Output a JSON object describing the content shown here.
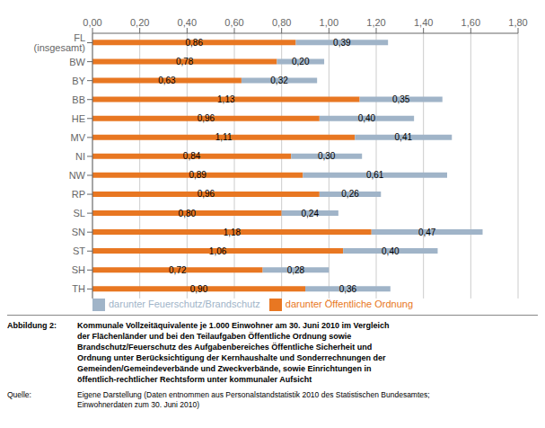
{
  "chart_data": {
    "type": "bar",
    "orientation": "horizontal",
    "stacked": true,
    "data_labels": true,
    "grid": true,
    "legend": "bottom",
    "categories": [
      "FL (insgesamt)",
      "BW",
      "BY",
      "BB",
      "HE",
      "MV",
      "NI",
      "NW",
      "RP",
      "SL",
      "SN",
      "ST",
      "SH",
      "TH"
    ],
    "series": [
      {
        "name": "darunter Öffentliche Ordnung",
        "color": "#E87722",
        "values": [
          0.86,
          0.78,
          0.63,
          1.13,
          0.96,
          1.11,
          0.84,
          0.89,
          0.96,
          0.8,
          1.18,
          1.06,
          0.72,
          0.9
        ],
        "value_labels": [
          "0,86",
          "0,78",
          "0,63",
          "1,13",
          "0,96",
          "1,11",
          "0,84",
          "0,89",
          "0,96",
          "0,80",
          "1,18",
          "1,06",
          "0,72",
          "0,90"
        ]
      },
      {
        "name": "darunter Feuerschutz/Brandschutz",
        "color": "#A0B4C8",
        "values": [
          0.39,
          0.2,
          0.32,
          0.35,
          0.4,
          0.41,
          0.3,
          0.61,
          0.26,
          0.24,
          0.47,
          0.4,
          0.28,
          0.36
        ],
        "value_labels": [
          "0,39",
          "0,20",
          "0,32",
          "0,35",
          "0,40",
          "0,41",
          "0,30",
          "0,61",
          "0,26",
          "0,24",
          "0,47",
          "0,40",
          "0,28",
          "0,36"
        ]
      }
    ],
    "xlim": [
      0.0,
      1.8
    ],
    "xticks": [
      {
        "value": 0.0,
        "label": "0,00"
      },
      {
        "value": 0.2,
        "label": "0,20"
      },
      {
        "value": 0.4,
        "label": "0,40"
      },
      {
        "value": 0.6,
        "label": "0,60"
      },
      {
        "value": 0.8,
        "label": "0,80"
      },
      {
        "value": 1.0,
        "label": "1,00"
      },
      {
        "value": 1.2,
        "label": "1,20"
      },
      {
        "value": 1.4,
        "label": "1,40"
      },
      {
        "value": 1.6,
        "label": "1,60"
      },
      {
        "value": 1.8,
        "label": "1,80"
      }
    ],
    "annotations": [
      "Abbildung 2:",
      "Kommunale Vollzeitäquivalente je 1.000 Einwohner am 30. Juni 2010 im Vergleich\nder Flächenländer und bei den Teilaufgaben Öffentliche Ordnung sowie\nBrandschutz/Feuerschutz des Aufgabenbereiches Öffentliche Sicherheit und\nOrdnung unter Berücksichtigung der Kernhaushalte und Sonderrechnungen der\nGemeinden/Gemeindeverbände und Zweckverbände, sowie Einrichtungen in\nöffentlich-rechtlicher Rechtsform unter kommunaler Aufsicht",
      "Quelle:",
      "Eigene Darstellung (Daten entnommen aus Personalstandstatistik 2010 des Statistischen Bundesamtes;\nEinwohnerdaten zum 30. Juni 2010)"
    ]
  }
}
